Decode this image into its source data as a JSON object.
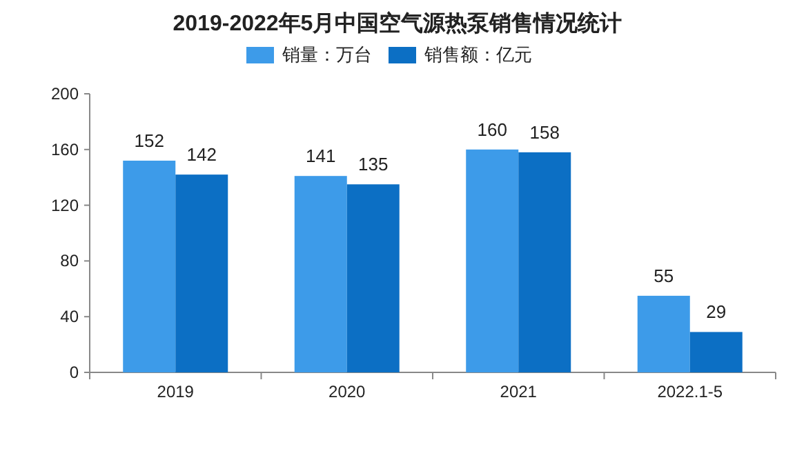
{
  "chart_data": {
    "type": "bar",
    "title": "2019-2022年5月中国空气源热泵销售情况统计",
    "categories": [
      "2019",
      "2020",
      "2021",
      "2022.1-5"
    ],
    "series": [
      {
        "name": "销量：万台",
        "color": "#3d9be9",
        "values": [
          152,
          141,
          160,
          55
        ]
      },
      {
        "name": "销售额：亿元",
        "color": "#0c6fc4",
        "values": [
          142,
          135,
          158,
          29
        ]
      }
    ],
    "ylim": [
      0,
      200
    ],
    "yticks": [
      0,
      40,
      80,
      120,
      160,
      200
    ],
    "data_labels": true,
    "legend": "top",
    "grid": false
  }
}
